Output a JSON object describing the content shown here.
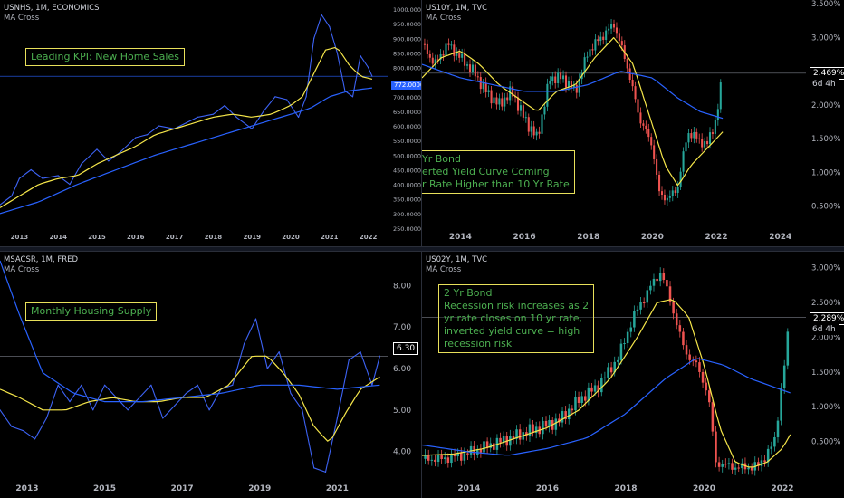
{
  "colors": {
    "up": "#26a69a",
    "down": "#ef5350",
    "line": "#2962ff",
    "ma_fast": "#f5e64a",
    "ma_slow": "#2962ff",
    "note_border": "#e8e05a",
    "note_text": "#4caf50"
  },
  "panels": [
    {
      "symbol": "USNHS, 1M, ECONOMICS",
      "indicator": "MA Cross",
      "note": [
        "Leading KPI: New Home Sales"
      ],
      "price_label": "772.0000",
      "countdown": ""
    },
    {
      "symbol": "US10Y, 1M, TVC",
      "indicator": "MA Cross",
      "note": [
        "Yr Bond",
        "erted Yield Curve Coming",
        "r Rate Higher than 10 Yr Rate"
      ],
      "price_label": "2.469%",
      "countdown": "6d 4h"
    },
    {
      "symbol": "MSACSR, 1M, FRED",
      "indicator": "MA Cross",
      "note": [
        "Monthly Housing Supply"
      ],
      "price_label": "6.30",
      "countdown": ""
    },
    {
      "symbol": "US02Y, 1M, TVC",
      "indicator": "MA Cross",
      "note": [
        "2 Yr Bond",
        "Recession risk increases as 2",
        "yr rate closes on 10 yr rate,",
        "inverted yield curve = high",
        "recession risk"
      ],
      "price_label": "2.289%",
      "countdown": "6d 4h"
    }
  ],
  "chart_data": [
    {
      "type": "line",
      "title": "USNHS, 1M, ECONOMICS",
      "xlim": [
        2012.5,
        2022.5
      ],
      "ylim": [
        250,
        1000
      ],
      "x_ticks": [
        "2013",
        "2014",
        "2015",
        "2016",
        "2017",
        "2018",
        "2019",
        "2020",
        "2021",
        "2022"
      ],
      "y_ticks": [
        "250.0000",
        "300.0000",
        "350.0000",
        "400.0000",
        "450.0000",
        "500.0000",
        "550.0000",
        "600.0000",
        "650.0000",
        "700.0000",
        "750.0000",
        "800.0000",
        "850.0000",
        "900.0000",
        "950.0000",
        "1000.0000"
      ],
      "series": [
        {
          "name": "",
          "style": "price",
          "x": [
            2012.5,
            2012.8,
            2013.0,
            2013.3,
            2013.6,
            2014.0,
            2014.3,
            2014.6,
            2015.0,
            2015.3,
            2015.6,
            2016.0,
            2016.3,
            2016.6,
            2017.0,
            2017.3,
            2017.6,
            2018.0,
            2018.3,
            2018.6,
            2019.0,
            2019.3,
            2019.6,
            2019.9,
            2020.2,
            2020.4,
            2020.6,
            2020.8,
            2021.0,
            2021.2,
            2021.4,
            2021.6,
            2021.8,
            2022.0,
            2022.1
          ],
          "values": [
            330,
            360,
            420,
            450,
            420,
            430,
            400,
            470,
            520,
            480,
            510,
            560,
            570,
            600,
            590,
            610,
            630,
            640,
            670,
            630,
            590,
            650,
            700,
            690,
            630,
            700,
            900,
            980,
            940,
            850,
            720,
            700,
            840,
            800,
            770
          ]
        },
        {
          "name": "",
          "style": "ma_fast",
          "x": [
            2012.5,
            2013.0,
            2013.5,
            2014.0,
            2014.5,
            2015.0,
            2015.5,
            2016.0,
            2016.5,
            2017.0,
            2017.5,
            2018.0,
            2018.5,
            2019.0,
            2019.5,
            2020.0,
            2020.3,
            2020.6,
            2020.9,
            2021.2,
            2021.5,
            2021.8,
            2022.1
          ],
          "values": [
            320,
            360,
            400,
            420,
            430,
            470,
            500,
            530,
            570,
            590,
            610,
            630,
            640,
            630,
            640,
            670,
            700,
            780,
            860,
            870,
            810,
            770,
            760
          ]
        },
        {
          "name": "",
          "style": "ma_slow",
          "x": [
            2012.5,
            2013.5,
            2014.5,
            2015.5,
            2016.5,
            2017.5,
            2018.5,
            2019.5,
            2020.5,
            2021.0,
            2021.5,
            2022.1
          ],
          "values": [
            300,
            340,
            400,
            450,
            500,
            540,
            580,
            620,
            660,
            700,
            720,
            730
          ]
        }
      ]
    },
    {
      "type": "candlestick",
      "title": "US10Y, 1M, TVC",
      "xlim": [
        2012.8,
        2024.8
      ],
      "ylim": [
        0.2,
        3.5
      ],
      "x_ticks": [
        "2014",
        "2016",
        "2018",
        "2020",
        "2022",
        "2024"
      ],
      "y_ticks": [
        "0.500%",
        "1.000%",
        "1.500%",
        "2.000%",
        "2.500%",
        "3.000%",
        "3.500%"
      ],
      "series": [
        {
          "name": "",
          "style": "price",
          "x": [
            2012.8,
            2013.2,
            2013.6,
            2014.0,
            2014.4,
            2014.8,
            2015.2,
            2015.6,
            2016.0,
            2016.4,
            2016.8,
            2017.2,
            2017.6,
            2018.0,
            2018.4,
            2018.8,
            2019.2,
            2019.6,
            2020.0,
            2020.2,
            2020.5,
            2020.8,
            2021.1,
            2021.4,
            2021.7,
            2022.0,
            2022.2
          ],
          "values": [
            2.9,
            2.6,
            2.9,
            2.7,
            2.5,
            2.2,
            2.0,
            2.2,
            1.8,
            1.5,
            2.4,
            2.4,
            2.2,
            2.8,
            3.0,
            3.2,
            2.6,
            1.8,
            1.4,
            0.7,
            0.6,
            0.8,
            1.6,
            1.5,
            1.4,
            1.8,
            2.469
          ]
        },
        {
          "name": "",
          "style": "ma_fast",
          "x": [
            2012.8,
            2013.4,
            2014.0,
            2014.6,
            2015.2,
            2015.8,
            2016.4,
            2017.0,
            2017.6,
            2018.2,
            2018.8,
            2019.4,
            2020.0,
            2020.4,
            2020.8,
            2021.2,
            2021.6,
            2022.0,
            2022.2
          ],
          "values": [
            2.4,
            2.7,
            2.8,
            2.6,
            2.3,
            2.1,
            1.9,
            2.2,
            2.3,
            2.7,
            3.0,
            2.6,
            1.7,
            1.1,
            0.8,
            1.1,
            1.3,
            1.5,
            1.6
          ]
        },
        {
          "name": "",
          "style": "ma_slow",
          "x": [
            2012.8,
            2014.0,
            2015.0,
            2016.0,
            2017.0,
            2018.0,
            2019.0,
            2020.0,
            2020.8,
            2021.5,
            2022.2
          ],
          "values": [
            2.6,
            2.4,
            2.3,
            2.2,
            2.2,
            2.3,
            2.5,
            2.4,
            2.1,
            1.9,
            1.8
          ]
        }
      ]
    },
    {
      "type": "line",
      "title": "MSACSR, 1M, FRED",
      "xlim": [
        2012.3,
        2022.3
      ],
      "ylim": [
        3.4,
        8.6
      ],
      "x_ticks": [
        "2013",
        "2015",
        "2017",
        "2019",
        "2021"
      ],
      "y_ticks": [
        "4.00",
        "5.00",
        "6.00",
        "7.00",
        "8.00"
      ],
      "series": [
        {
          "name": "",
          "style": "price",
          "x": [
            2012.3,
            2012.6,
            2012.9,
            2013.2,
            2013.5,
            2013.8,
            2014.1,
            2014.4,
            2014.7,
            2015.0,
            2015.3,
            2015.6,
            2015.9,
            2016.2,
            2016.5,
            2016.8,
            2017.1,
            2017.4,
            2017.7,
            2018.0,
            2018.3,
            2018.6,
            2018.9,
            2019.2,
            2019.5,
            2019.8,
            2020.1,
            2020.4,
            2020.7,
            2021.0,
            2021.3,
            2021.6,
            2021.9,
            2022.1
          ],
          "values": [
            5.0,
            4.6,
            4.5,
            4.3,
            4.8,
            5.6,
            5.2,
            5.6,
            5.0,
            5.6,
            5.3,
            5.0,
            5.3,
            5.6,
            4.8,
            5.1,
            5.4,
            5.6,
            5.0,
            5.5,
            5.6,
            6.6,
            7.2,
            6.0,
            6.4,
            5.4,
            5.0,
            3.6,
            3.5,
            4.8,
            6.2,
            6.4,
            5.6,
            6.3
          ]
        },
        {
          "name": "",
          "style": "ma_fast",
          "x": [
            2012.3,
            2012.8,
            2013.4,
            2014.0,
            2014.6,
            2015.2,
            2015.8,
            2016.4,
            2017.0,
            2017.6,
            2018.2,
            2018.8,
            2019.2,
            2019.6,
            2020.0,
            2020.4,
            2020.8,
            2021.2,
            2021.6,
            2022.1
          ],
          "values": [
            5.5,
            5.3,
            5.0,
            5.0,
            5.2,
            5.3,
            5.2,
            5.2,
            5.3,
            5.3,
            5.6,
            6.3,
            6.3,
            5.9,
            5.4,
            4.6,
            4.2,
            4.9,
            5.5,
            5.8
          ]
        },
        {
          "name": "",
          "style": "ma_slow",
          "x": [
            2012.3,
            2012.8,
            2013.4,
            2014.2,
            2015.0,
            2016.0,
            2017.0,
            2018.0,
            2019.0,
            2020.0,
            2021.0,
            2022.1
          ],
          "values": [
            8.6,
            7.3,
            5.9,
            5.4,
            5.2,
            5.2,
            5.3,
            5.4,
            5.6,
            5.6,
            5.5,
            5.6
          ]
        }
      ]
    },
    {
      "type": "candlestick",
      "title": "US02Y, 1M, TVC",
      "xlim": [
        2012.8,
        2022.6
      ],
      "ylim": [
        0.0,
        3.1
      ],
      "x_ticks": [
        "2014",
        "2016",
        "2018",
        "2020",
        "2022"
      ],
      "y_ticks": [
        "0.500%",
        "1.000%",
        "1.500%",
        "2.000%",
        "2.500%",
        "3.000%"
      ],
      "series": [
        {
          "name": "",
          "style": "price",
          "x": [
            2012.8,
            2013.3,
            2013.8,
            2014.3,
            2014.8,
            2015.3,
            2015.8,
            2016.3,
            2016.8,
            2017.3,
            2017.8,
            2018.2,
            2018.6,
            2018.9,
            2019.2,
            2019.5,
            2019.8,
            2020.1,
            2020.3,
            2020.6,
            2021.0,
            2021.4,
            2021.8,
            2022.0,
            2022.2
          ],
          "values": [
            0.25,
            0.25,
            0.3,
            0.4,
            0.5,
            0.6,
            0.7,
            0.8,
            1.1,
            1.3,
            1.7,
            2.3,
            2.7,
            2.95,
            2.4,
            1.8,
            1.6,
            1.2,
            0.2,
            0.15,
            0.12,
            0.15,
            0.5,
            1.4,
            2.289
          ]
        },
        {
          "name": "",
          "style": "ma_fast",
          "x": [
            2012.8,
            2013.6,
            2014.4,
            2015.2,
            2016.0,
            2016.8,
            2017.6,
            2018.3,
            2018.8,
            2019.2,
            2019.6,
            2020.0,
            2020.4,
            2020.8,
            2021.2,
            2021.6,
            2022.0,
            2022.2
          ],
          "values": [
            0.3,
            0.32,
            0.4,
            0.55,
            0.7,
            0.95,
            1.4,
            2.0,
            2.5,
            2.55,
            2.3,
            1.6,
            0.7,
            0.2,
            0.12,
            0.2,
            0.4,
            0.6
          ]
        },
        {
          "name": "",
          "style": "ma_slow",
          "x": [
            2012.8,
            2014.0,
            2015.0,
            2016.0,
            2017.0,
            2018.0,
            2019.0,
            2019.8,
            2020.5,
            2021.2,
            2022.2
          ],
          "values": [
            0.45,
            0.35,
            0.3,
            0.4,
            0.55,
            0.9,
            1.4,
            1.7,
            1.6,
            1.4,
            1.2
          ]
        }
      ]
    }
  ]
}
